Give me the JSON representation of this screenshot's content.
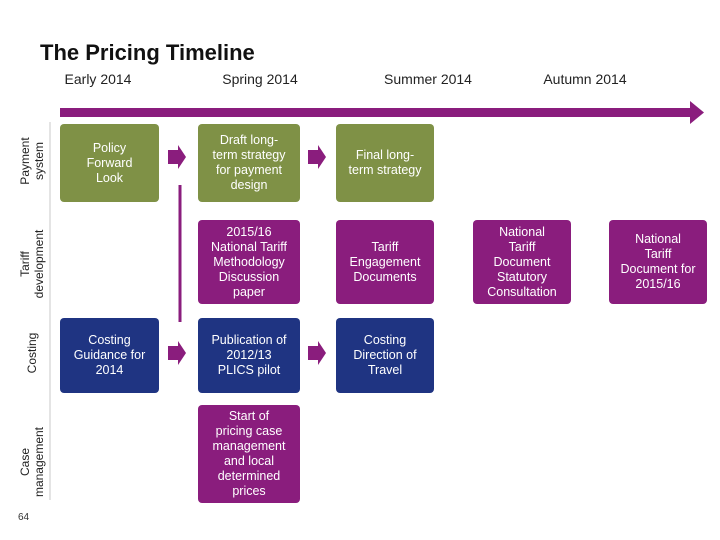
{
  "title": "The Pricing Timeline",
  "page_number": "64",
  "seasons": [
    "Early 2014",
    "Spring 2014",
    "Summer 2014",
    "Autumn 2014"
  ],
  "rows": {
    "payment": [
      "Payment",
      "system"
    ],
    "tariff": [
      "Tariff",
      "development"
    ],
    "costing": [
      "Costing"
    ],
    "case": [
      "Case",
      "management"
    ]
  },
  "boxes": {
    "policy_forward_look": [
      "Policy",
      "Forward",
      "Look"
    ],
    "draft_long_term": [
      "Draft long-",
      "term strategy",
      "for payment",
      "design"
    ],
    "final_long_term": [
      "Final long-",
      "term strategy"
    ],
    "ntm_discussion": [
      "2015/16",
      "National Tariff",
      "Methodology",
      "Discussion",
      "paper"
    ],
    "tariff_engagement": [
      "Tariff",
      "Engagement",
      "Documents"
    ],
    "ntd_statutory": [
      "National",
      "Tariff",
      "Document",
      "Statutory",
      "Consultation"
    ],
    "ntd_2015_16": [
      "National",
      "Tariff",
      "Document for",
      "2015/16"
    ],
    "costing_guidance": [
      "Costing",
      "Guidance for",
      "2014"
    ],
    "plics_pilot": [
      "Publication of",
      "2012/13",
      "PLICS pilot"
    ],
    "costing_direction": [
      "Costing",
      "Direction of",
      "Travel"
    ],
    "pricing_case": [
      "Start of",
      "pricing case",
      "management",
      "and local",
      "determined",
      "prices"
    ]
  },
  "colors": {
    "olive": "#7f9146",
    "purple": "#8a1d7d",
    "navy": "#1f3482"
  }
}
